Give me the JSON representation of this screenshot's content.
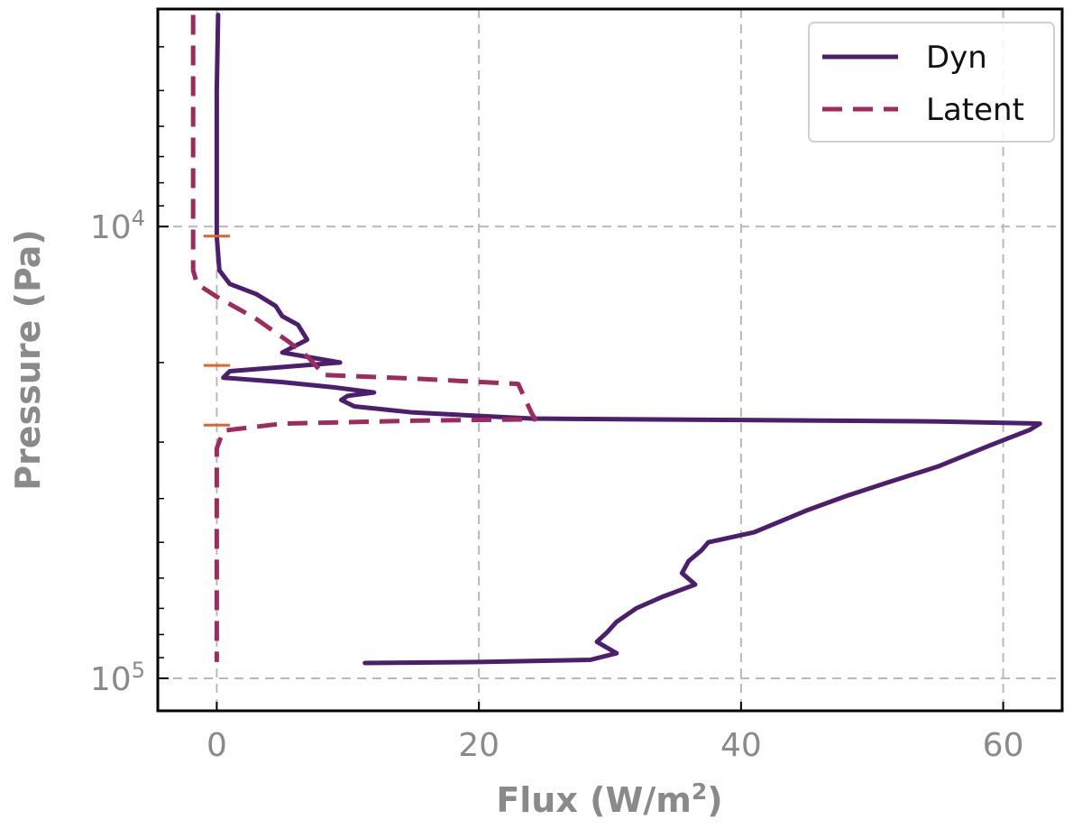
{
  "chart_data": {
    "type": "line",
    "title": "",
    "xlabel": "Flux (W/m",
    "xlabel_sup": "2",
    "xlabel_suffix": ")",
    "ylabel": "Pressure (Pa)",
    "xlim": [
      -4.5,
      64.5
    ],
    "ylim": [
      3300,
      118000
    ],
    "yscale": "log",
    "yinverted": true,
    "grid": true,
    "legend_position": "top-right",
    "xticks": [
      0,
      20,
      40,
      60
    ],
    "yticks": [
      {
        "value": 10000,
        "base": "10",
        "exp": "4"
      },
      {
        "value": 100000,
        "base": "10",
        "exp": "5"
      }
    ],
    "series": [
      {
        "name": "Dyn",
        "color": "#4d1d6e",
        "style": "solid",
        "points": [
          [
            0.1,
            3400
          ],
          [
            0.0,
            5000
          ],
          [
            0.0,
            8000
          ],
          [
            0.0,
            10500
          ],
          [
            0.2,
            12500
          ],
          [
            1.0,
            13400
          ],
          [
            3.0,
            14100
          ],
          [
            4.5,
            15000
          ],
          [
            5.0,
            15800
          ],
          [
            6.2,
            16500
          ],
          [
            6.9,
            17800
          ],
          [
            5.0,
            19000
          ],
          [
            9.4,
            20000
          ],
          [
            1.0,
            20900
          ],
          [
            0.5,
            21600
          ],
          [
            5.0,
            22100
          ],
          [
            9.0,
            22700
          ],
          [
            12.0,
            23300
          ],
          [
            10.0,
            23700
          ],
          [
            9.5,
            24200
          ],
          [
            10.5,
            25000
          ],
          [
            15.0,
            25800
          ],
          [
            24.0,
            26600
          ],
          [
            40.0,
            26800
          ],
          [
            55.0,
            27000
          ],
          [
            62.8,
            27300
          ],
          [
            62.0,
            28200
          ],
          [
            59.0,
            30500
          ],
          [
            55.0,
            34000
          ],
          [
            51.0,
            37000
          ],
          [
            48.0,
            39500
          ],
          [
            45.0,
            42500
          ],
          [
            41.0,
            47500
          ],
          [
            37.5,
            50000
          ],
          [
            37.0,
            52000
          ],
          [
            36.0,
            55000
          ],
          [
            35.5,
            58500
          ],
          [
            36.5,
            62000
          ],
          [
            34.0,
            66000
          ],
          [
            32.0,
            70000
          ],
          [
            30.5,
            75000
          ],
          [
            29.8,
            79000
          ],
          [
            29.0,
            83000
          ],
          [
            30.5,
            88000
          ],
          [
            28.5,
            91000
          ],
          [
            20.0,
            92000
          ],
          [
            11.3,
            92500
          ]
        ]
      },
      {
        "name": "Latent",
        "color": "#9f2b5e",
        "style": "dashed",
        "points": [
          [
            -1.8,
            3400
          ],
          [
            -1.8,
            8000
          ],
          [
            -1.8,
            12500
          ],
          [
            -1.5,
            13400
          ],
          [
            0.0,
            14300
          ],
          [
            3.0,
            16000
          ],
          [
            5.5,
            18000
          ],
          [
            7.0,
            19500
          ],
          [
            7.8,
            20700
          ],
          [
            8.0,
            21300
          ],
          [
            15.0,
            21700
          ],
          [
            23.0,
            22300
          ],
          [
            24.0,
            25800
          ],
          [
            24.3,
            26700
          ],
          [
            15.0,
            26900
          ],
          [
            5.0,
            27300
          ],
          [
            0.5,
            28300
          ],
          [
            0.0,
            31000
          ],
          [
            0.0,
            60000
          ],
          [
            0.0,
            92000
          ]
        ]
      }
    ],
    "markers": {
      "color": "#e3612a",
      "x": 0.0,
      "half_width": 1.0,
      "pressures": [
        10500,
        20300,
        27500
      ]
    }
  }
}
